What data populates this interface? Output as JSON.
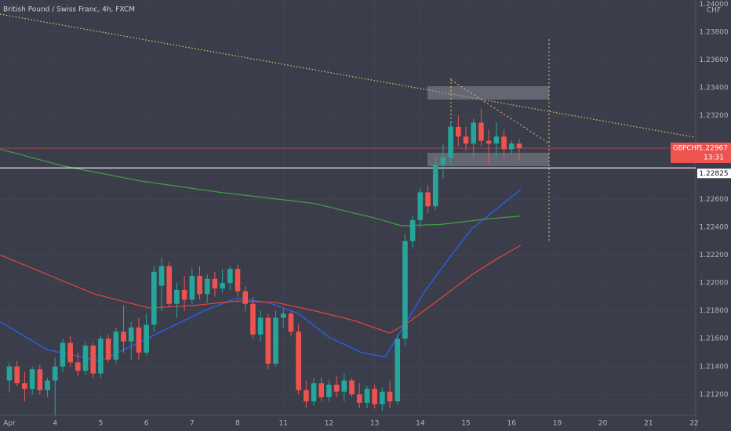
{
  "chart_data": {
    "type": "candlestick",
    "title": "British Pound / Swiss Franc, 4h, FXCM",
    "currency": "CHF",
    "symbol": "GBPCHF",
    "countdown": "13:31",
    "last_price": {
      "value": 1.22967,
      "label": "1.22967"
    },
    "horizontal_line": {
      "value": 1.22825,
      "label": "1.22825"
    },
    "up_color": "#26a69a",
    "down_color": "#ef5350",
    "ohlc": [
      [
        1.213,
        1.2143,
        1.2122,
        1.214
      ],
      [
        1.214,
        1.2144,
        1.2126,
        1.2128
      ],
      [
        1.2128,
        1.2136,
        1.2115,
        1.2124
      ],
      [
        1.2124,
        1.214,
        1.212,
        1.2138
      ],
      [
        1.2138,
        1.2141,
        1.212,
        1.2123
      ],
      [
        1.2123,
        1.2132,
        1.2118,
        1.213
      ],
      [
        1.213,
        1.2146,
        1.2105,
        1.214
      ],
      [
        1.214,
        1.216,
        1.2136,
        1.2157
      ],
      [
        1.2157,
        1.2162,
        1.214,
        1.2143
      ],
      [
        1.2143,
        1.215,
        1.2133,
        1.2137
      ],
      [
        1.2137,
        1.2158,
        1.2134,
        1.2155
      ],
      [
        1.2155,
        1.2157,
        1.2132,
        1.2135
      ],
      [
        1.2135,
        1.2162,
        1.2132,
        1.216
      ],
      [
        1.216,
        1.2163,
        1.2143,
        1.2145
      ],
      [
        1.2145,
        1.2168,
        1.2142,
        1.2165
      ],
      [
        1.2165,
        1.2184,
        1.215,
        1.2158
      ],
      [
        1.2158,
        1.2172,
        1.2145,
        1.2168
      ],
      [
        1.2168,
        1.2175,
        1.2145,
        1.215
      ],
      [
        1.215,
        1.2178,
        1.2148,
        1.217
      ],
      [
        1.217,
        1.2212,
        1.2165,
        1.2208
      ],
      [
        1.2198,
        1.2218,
        1.218,
        1.2212
      ],
      [
        1.2212,
        1.2215,
        1.2183,
        1.2185
      ],
      [
        1.2185,
        1.22,
        1.2175,
        1.2195
      ],
      [
        1.2195,
        1.2205,
        1.218,
        1.2188
      ],
      [
        1.2188,
        1.221,
        1.2185,
        1.2205
      ],
      [
        1.2205,
        1.2212,
        1.2188,
        1.2192
      ],
      [
        1.2192,
        1.2206,
        1.2186,
        1.2203
      ],
      [
        1.2203,
        1.2208,
        1.219,
        1.2196
      ],
      [
        1.2196,
        1.221,
        1.2193,
        1.22
      ],
      [
        1.22,
        1.2212,
        1.2195,
        1.221
      ],
      [
        1.221,
        1.2213,
        1.219,
        1.2194
      ],
      [
        1.2194,
        1.2198,
        1.218,
        1.2185
      ],
      [
        1.2185,
        1.219,
        1.216,
        1.2163
      ],
      [
        1.2163,
        1.218,
        1.2158,
        1.2175
      ],
      [
        1.2175,
        1.2178,
        1.2138,
        1.2142
      ],
      [
        1.2142,
        1.218,
        1.214,
        1.2175
      ],
      [
        1.2175,
        1.2182,
        1.2168,
        1.2178
      ],
      [
        1.2178,
        1.218,
        1.2162,
        1.2165
      ],
      [
        1.2165,
        1.217,
        1.212,
        1.2123
      ],
      [
        1.2123,
        1.213,
        1.211,
        1.2115
      ],
      [
        1.2115,
        1.2132,
        1.2112,
        1.2128
      ],
      [
        1.2128,
        1.2132,
        1.2115,
        1.2118
      ],
      [
        1.2118,
        1.213,
        1.2115,
        1.2127
      ],
      [
        1.2127,
        1.2133,
        1.2118,
        1.2122
      ],
      [
        1.2122,
        1.2135,
        1.2115,
        1.213
      ],
      [
        1.213,
        1.2132,
        1.2118,
        1.212
      ],
      [
        1.212,
        1.2128,
        1.211,
        1.2114
      ],
      [
        1.2114,
        1.2126,
        1.211,
        1.2124
      ],
      [
        1.2124,
        1.2127,
        1.211,
        1.2113
      ],
      [
        1.2113,
        1.2125,
        1.2108,
        1.2122
      ],
      [
        1.2122,
        1.213,
        1.211,
        1.2115
      ],
      [
        1.2115,
        1.2163,
        1.2113,
        1.216
      ],
      [
        1.216,
        1.2235,
        1.2155,
        1.223
      ],
      [
        1.223,
        1.2248,
        1.2225,
        1.2245
      ],
      [
        1.2245,
        1.2268,
        1.224,
        1.2265
      ],
      [
        1.2265,
        1.227,
        1.225,
        1.2255
      ],
      [
        1.2255,
        1.229,
        1.2252,
        1.2285
      ],
      [
        1.2285,
        1.23,
        1.2275,
        1.229
      ],
      [
        1.229,
        1.2315,
        1.2285,
        1.2312
      ],
      [
        1.2312,
        1.232,
        1.2298,
        1.2305
      ],
      [
        1.2305,
        1.2312,
        1.2295,
        1.23
      ],
      [
        1.23,
        1.2318,
        1.229,
        1.2315
      ],
      [
        1.2315,
        1.2325,
        1.2298,
        1.2302
      ],
      [
        1.2302,
        1.231,
        1.2285,
        1.23
      ],
      [
        1.23,
        1.2315,
        1.229,
        1.2305
      ],
      [
        1.2305,
        1.231,
        1.229,
        1.2296
      ],
      [
        1.2296,
        1.2302,
        1.2292,
        1.23
      ],
      [
        1.23,
        1.2303,
        1.2288,
        1.22967
      ]
    ],
    "lines": [
      {
        "color": "#2962ff",
        "x": [
          -1.2,
          5,
          12,
          18.4,
          25.6,
          29.8,
          34,
          38,
          42,
          46.3,
          49.4,
          51.5,
          54.6,
          57.7,
          60.8,
          64,
          67.2
        ],
        "values": [
          1.2172,
          1.2152,
          1.2144,
          1.2161,
          1.218,
          1.2189,
          1.2186,
          1.2178,
          1.2161,
          1.215,
          1.2147,
          1.2166,
          1.2194,
          1.2217,
          1.2239,
          1.2253,
          1.2267
        ]
      },
      {
        "color": "#e5443f",
        "x": [
          -1.2,
          5,
          11.2,
          18.4,
          24.6,
          29.8,
          35,
          40.1,
          45.3,
          50,
          52.5,
          56.7,
          60.8,
          64,
          67.2
        ],
        "values": [
          1.222,
          1.2206,
          1.2192,
          1.2182,
          1.2184,
          1.2187,
          1.2186,
          1.218,
          1.2173,
          1.2164,
          1.2172,
          1.2189,
          1.2206,
          1.2217,
          1.2227
        ]
      },
      {
        "color": "#43a047",
        "x": [
          -1.2,
          7,
          17.4,
          27.7,
          40.1,
          48.4,
          51.5,
          56.7,
          62.9,
          67.2
        ],
        "values": [
          1.2296,
          1.2284,
          1.2273,
          1.2265,
          1.2257,
          1.2246,
          1.2241,
          1.2242,
          1.2246,
          1.2248
        ]
      }
    ],
    "xlim": [
      -1.24,
      90.2
    ],
    "ylim": [
      1.2105,
      1.2403
    ],
    "xticks": [
      {
        "value": 0,
        "label": "Apr"
      },
      {
        "value": 6,
        "label": "4"
      },
      {
        "value": 12,
        "label": "5"
      },
      {
        "value": 18,
        "label": "6"
      },
      {
        "value": 24,
        "label": "7"
      },
      {
        "value": 30,
        "label": "8"
      },
      {
        "value": 36,
        "label": "11"
      },
      {
        "value": 42,
        "label": "12"
      },
      {
        "value": 48,
        "label": "13"
      },
      {
        "value": 54,
        "label": "14"
      },
      {
        "value": 60,
        "label": "15"
      },
      {
        "value": 66,
        "label": "16"
      },
      {
        "value": 72,
        "label": "19"
      },
      {
        "value": 78,
        "label": "20"
      },
      {
        "value": 84,
        "label": "21"
      },
      {
        "value": 90,
        "label": "22"
      }
    ],
    "yticks": [
      {
        "value": 1.212,
        "label": "1.21200"
      },
      {
        "value": 1.214,
        "label": "1.21400"
      },
      {
        "value": 1.216,
        "label": "1.21600"
      },
      {
        "value": 1.218,
        "label": "1.21800"
      },
      {
        "value": 1.22,
        "label": "1.22000"
      },
      {
        "value": 1.222,
        "label": "1.22200"
      },
      {
        "value": 1.224,
        "label": "1.22400"
      },
      {
        "value": 1.226,
        "label": "1.22600"
      },
      {
        "value": 1.232,
        "label": "1.23200"
      },
      {
        "value": 1.234,
        "label": "1.23400"
      },
      {
        "value": 1.236,
        "label": "1.23600"
      },
      {
        "value": 1.238,
        "label": "1.23800"
      },
      {
        "value": 1.24,
        "label": "1.24000"
      }
    ]
  }
}
